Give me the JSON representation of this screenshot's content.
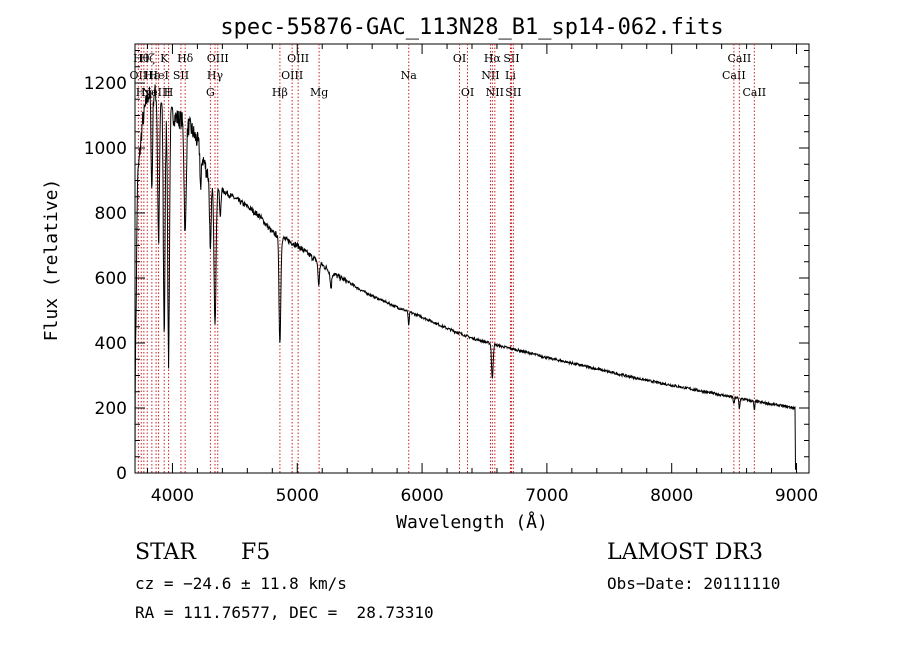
{
  "chart_data": {
    "type": "line",
    "title": "spec-55876-GAC_113N28_B1_sp14-062.fits",
    "xlabel": "Wavelength (Å)",
    "ylabel": "Flux (relative)",
    "xlim": [
      3700,
      9100
    ],
    "ylim": [
      0,
      1320
    ],
    "xticks": [
      4000,
      5000,
      6000,
      7000,
      8000,
      9000
    ],
    "yticks": [
      0,
      200,
      400,
      600,
      800,
      1000,
      1200
    ],
    "continuum": {
      "x": [
        3700,
        3720,
        3760,
        3800,
        3850,
        3900,
        3950,
        4000,
        4050,
        4100,
        4150,
        4200,
        4250,
        4300,
        4350,
        4400,
        4500,
        4600,
        4700,
        4800,
        4900,
        5000,
        5100,
        5200,
        5300,
        5400,
        5500,
        5600,
        5800,
        6000,
        6200,
        6400,
        6600,
        6800,
        7000,
        7200,
        7400,
        7600,
        7800,
        8000,
        8200,
        8400,
        8600,
        8800,
        8990
      ],
      "y": [
        200,
        900,
        1080,
        1160,
        1175,
        1150,
        1130,
        1100,
        1090,
        1080,
        1060,
        1020,
        960,
        900,
        880,
        870,
        845,
        820,
        790,
        740,
        720,
        700,
        670,
        640,
        610,
        590,
        565,
        545,
        510,
        480,
        445,
        415,
        393,
        375,
        355,
        338,
        320,
        302,
        285,
        270,
        255,
        240,
        225,
        212,
        200
      ]
    },
    "absorption_lines": [
      {
        "center": 3835,
        "depth": 300,
        "width": 6
      },
      {
        "center": 3889,
        "depth": 450,
        "width": 7
      },
      {
        "center": 3934,
        "depth": 700,
        "width": 7
      },
      {
        "center": 3969,
        "depth": 780,
        "width": 7
      },
      {
        "center": 4102,
        "depth": 350,
        "width": 8
      },
      {
        "center": 4227,
        "depth": 120,
        "width": 5
      },
      {
        "center": 4304,
        "depth": 220,
        "width": 6
      },
      {
        "center": 4341,
        "depth": 420,
        "width": 8
      },
      {
        "center": 4383,
        "depth": 90,
        "width": 5
      },
      {
        "center": 4861,
        "depth": 330,
        "width": 7
      },
      {
        "center": 5172,
        "depth": 70,
        "width": 6
      },
      {
        "center": 5270,
        "depth": 50,
        "width": 6
      },
      {
        "center": 5893,
        "depth": 45,
        "width": 4
      },
      {
        "center": 6563,
        "depth": 110,
        "width": 6
      },
      {
        "center": 8498,
        "depth": 22,
        "width": 4
      },
      {
        "center": 8542,
        "depth": 32,
        "width": 4
      },
      {
        "center": 8662,
        "depth": 28,
        "width": 4
      }
    ],
    "line_markers": [
      {
        "x": 3727,
        "label": "OII",
        "row": 2
      },
      {
        "x": 3750,
        "label": "Hθ",
        "row": 1
      },
      {
        "x": 3771,
        "label": "Hη",
        "row": 3
      },
      {
        "x": 3798,
        "label": "Hζ",
        "row": 1
      },
      {
        "x": 3835,
        "label": "Hε",
        "row": 2
      },
      {
        "x": 3869,
        "label": "NeIII",
        "row": 3
      },
      {
        "x": 3889,
        "label": "HeI",
        "row": 2
      },
      {
        "x": 3934,
        "label": "K",
        "row": 1
      },
      {
        "x": 3969,
        "label": "H",
        "row": 3
      },
      {
        "x": 4068,
        "label": "SII",
        "row": 2
      },
      {
        "x": 4102,
        "label": "Hδ",
        "row": 1
      },
      {
        "x": 4304,
        "label": "G",
        "row": 3
      },
      {
        "x": 4341,
        "label": "Hγ",
        "row": 2
      },
      {
        "x": 4363,
        "label": "OIII",
        "row": 1
      },
      {
        "x": 4861,
        "label": "Hβ",
        "row": 3
      },
      {
        "x": 4959,
        "label": "OIII",
        "row": 2
      },
      {
        "x": 5007,
        "label": "OIII",
        "row": 1
      },
      {
        "x": 5175,
        "label": "Mg",
        "row": 3
      },
      {
        "x": 5893,
        "label": "Na",
        "row": 2
      },
      {
        "x": 6300,
        "label": "OI",
        "row": 1
      },
      {
        "x": 6364,
        "label": "OI",
        "row": 3
      },
      {
        "x": 6548,
        "label": "NII",
        "row": 2
      },
      {
        "x": 6563,
        "label": "Hα",
        "row": 1
      },
      {
        "x": 6583,
        "label": "NII",
        "row": 3
      },
      {
        "x": 6708,
        "label": "Li",
        "row": 2
      },
      {
        "x": 6716,
        "label": "SII",
        "row": 1
      },
      {
        "x": 6731,
        "label": "SII",
        "row": 3
      },
      {
        "x": 8498,
        "label": "CaII",
        "row": 2
      },
      {
        "x": 8542,
        "label": "CaII",
        "row": 1
      },
      {
        "x": 8662,
        "label": "CaII",
        "row": 3
      }
    ]
  },
  "footer": {
    "object_class": "STAR",
    "subclass": "F5",
    "survey": "LAMOST DR3",
    "redshift": "cz = −24.6 ± 11.8 km/s",
    "obs_date": "Obs−Date: 20111110",
    "coordinates": "RA = 111.76577, DEC =  28.73310"
  },
  "colors": {
    "spectrum": "#000000",
    "marker": "#cc2020",
    "axis": "#000000"
  }
}
